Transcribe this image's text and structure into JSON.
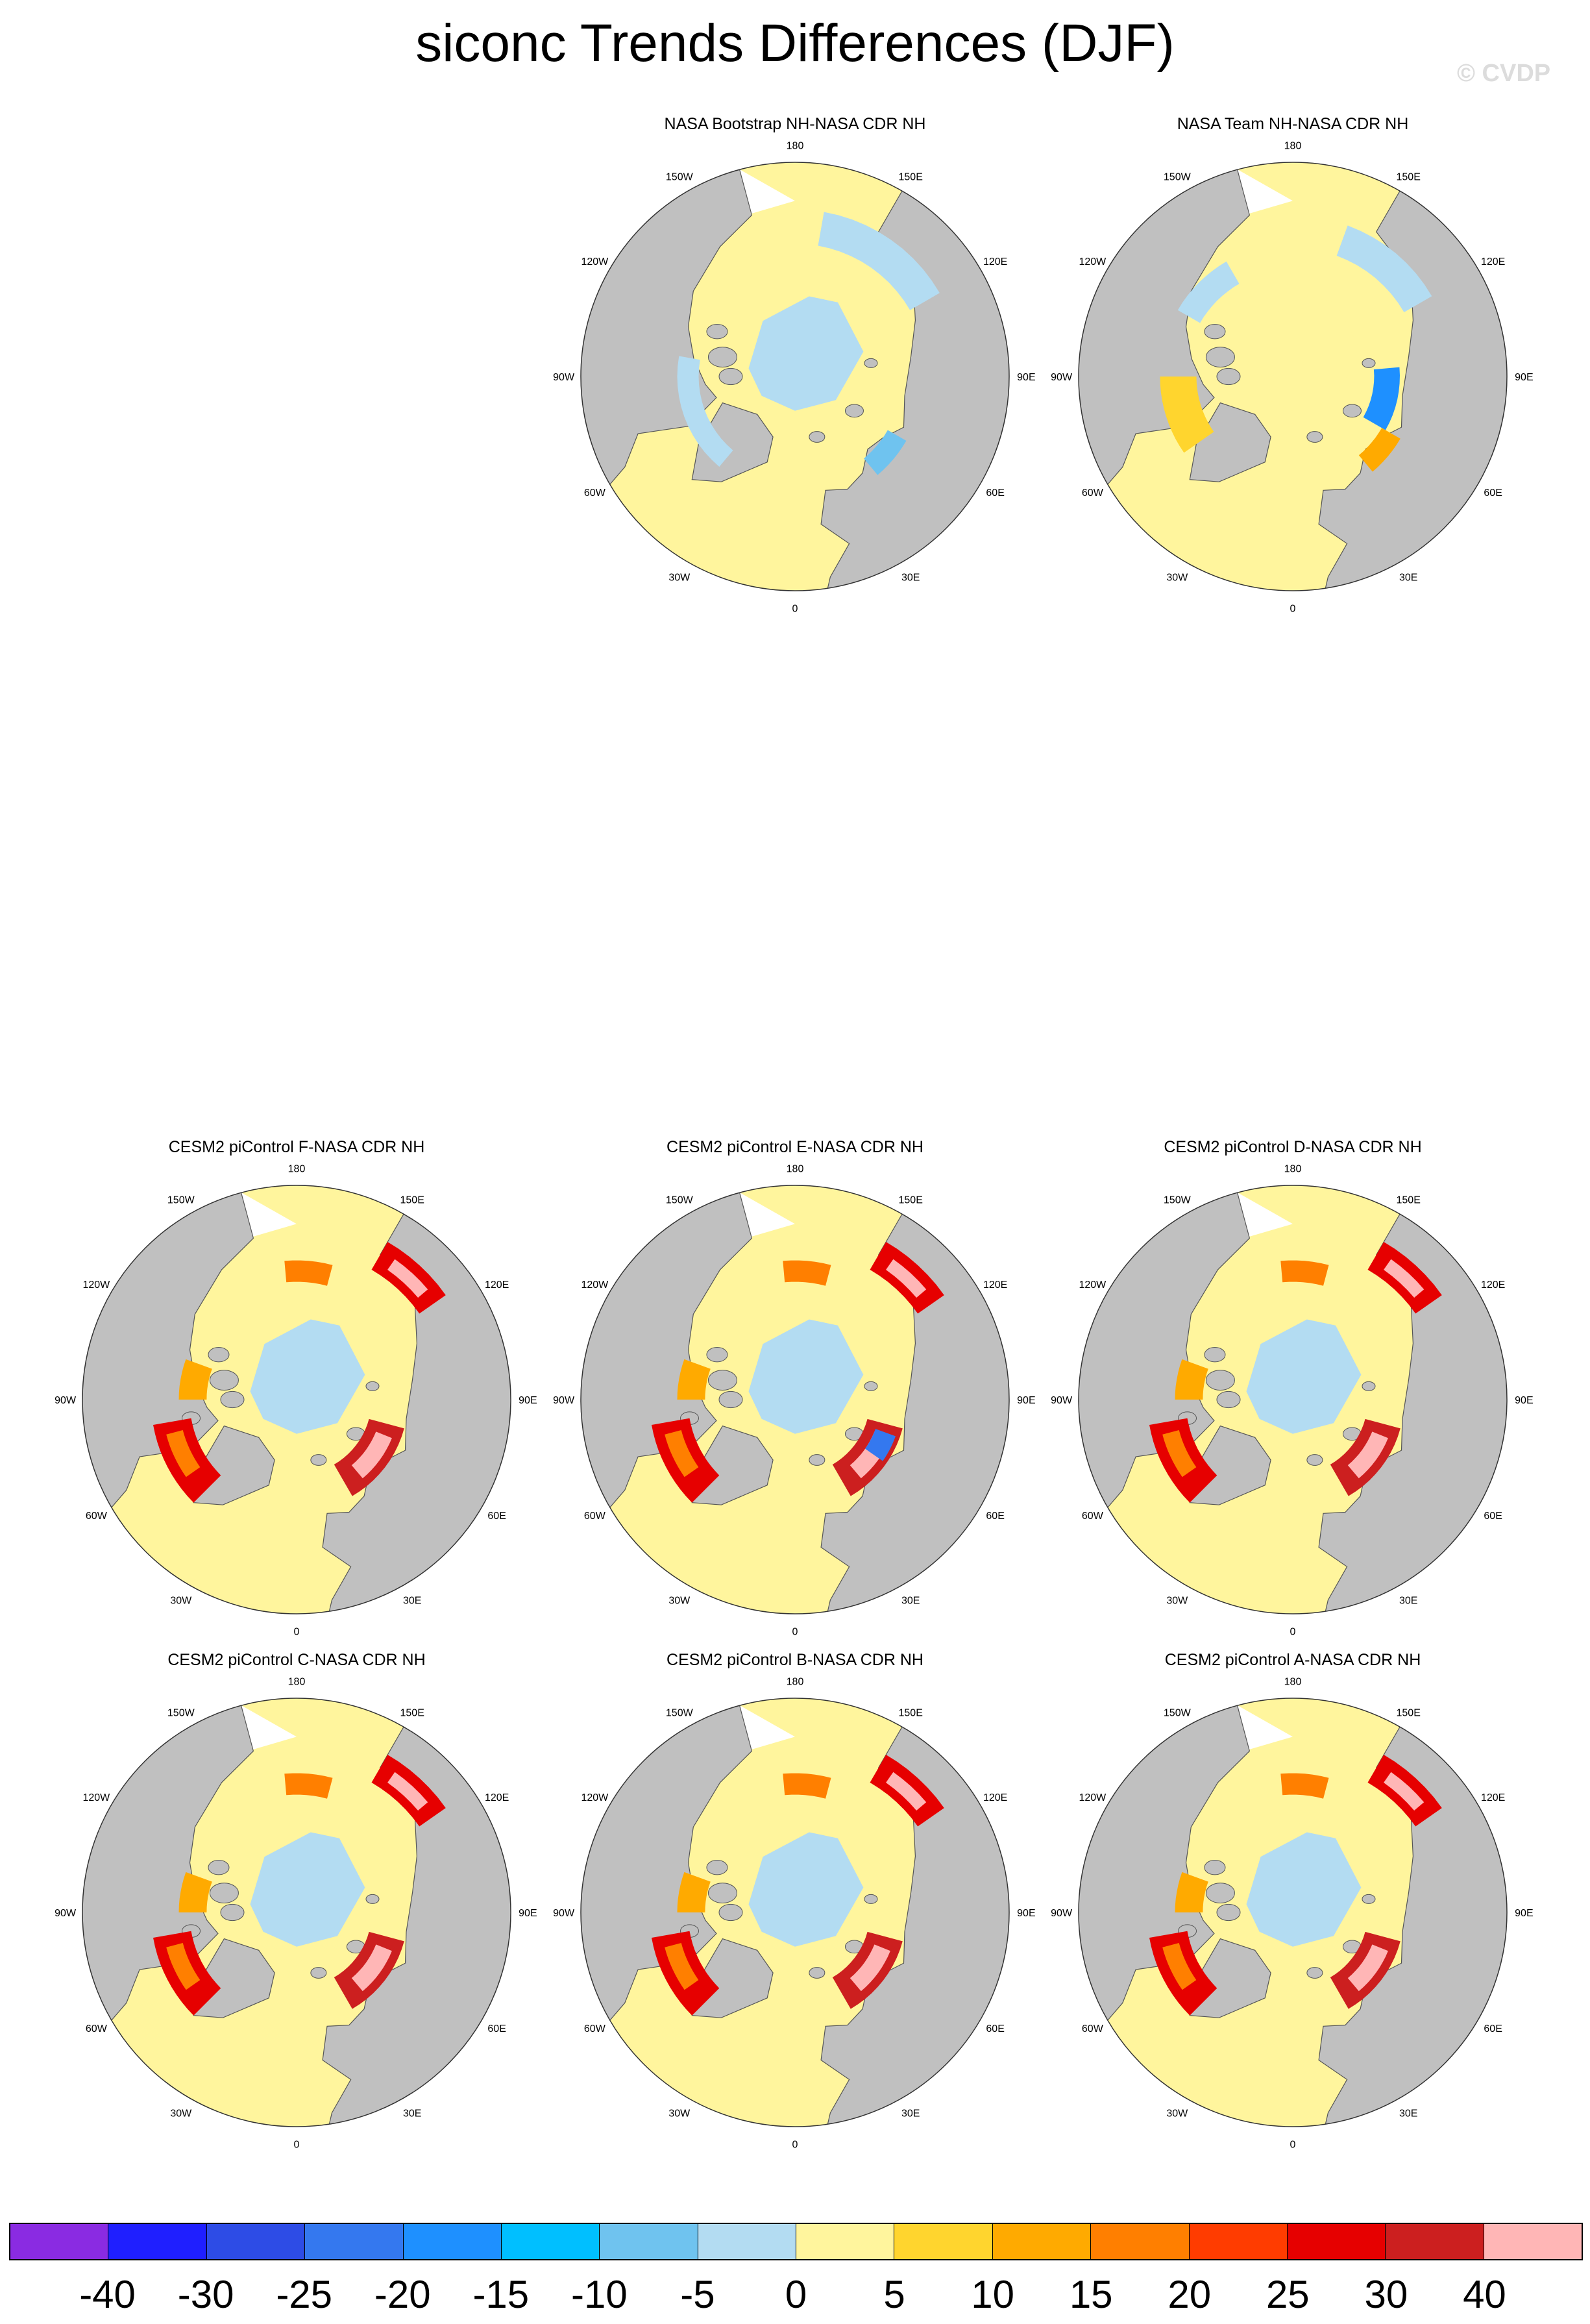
{
  "title": "siconc Trends Differences (DJF)",
  "watermark": "© CVDP",
  "panels": [
    {
      "title": "NASA Bootstrap NH-NASA CDR NH",
      "scheme": "bootstrap"
    },
    {
      "title": "NASA Team NH-NASA CDR NH",
      "scheme": "team"
    },
    {
      "title": "CESM2 piControl F-NASA CDR NH",
      "scheme": "cesm"
    },
    {
      "title": "CESM2 piControl E-NASA CDR NH",
      "scheme": "cesm-e"
    },
    {
      "title": "CESM2 piControl D-NASA CDR NH",
      "scheme": "cesm"
    },
    {
      "title": "CESM2 piControl C-NASA CDR NH",
      "scheme": "cesm"
    },
    {
      "title": "CESM2 piControl B-NASA CDR NH",
      "scheme": "cesm"
    },
    {
      "title": "CESM2 piControl A-NASA CDR NH",
      "scheme": "cesm"
    }
  ],
  "longitude_labels": [
    {
      "text": "180",
      "lon": 180
    },
    {
      "text": "150E",
      "lon": 150
    },
    {
      "text": "120E",
      "lon": 120
    },
    {
      "text": "90E",
      "lon": 90
    },
    {
      "text": "60E",
      "lon": 60
    },
    {
      "text": "30E",
      "lon": 30
    },
    {
      "text": "0",
      "lon": 0
    },
    {
      "text": "30W",
      "lon": -30
    },
    {
      "text": "60W",
      "lon": -60
    },
    {
      "text": "90W",
      "lon": -90
    },
    {
      "text": "120W",
      "lon": -120
    },
    {
      "text": "150W",
      "lon": -150
    }
  ],
  "colors": {
    "land": "#c0c0c0",
    "missing": "#ffffff",
    "coast": "#555555",
    "neutral_pos": "#fff59d",
    "neutral_neg": "#b3dcf2"
  },
  "colorbar": {
    "colors": [
      "#8a2be2",
      "#1f1fff",
      "#2d4ce6",
      "#3478ef",
      "#1e90ff",
      "#00bfff",
      "#6fc3ef",
      "#b3dcf2",
      "#fff59d",
      "#ffd52e",
      "#ffaa00",
      "#ff7f00",
      "#ff3c00",
      "#e60000",
      "#cc1f1f",
      "#ffb6b6"
    ],
    "labels": [
      "-40",
      "-30",
      "-25",
      "-20",
      "-15",
      "-10",
      "-5",
      "0",
      "5",
      "10",
      "15",
      "20",
      "25",
      "30",
      "40"
    ]
  }
}
